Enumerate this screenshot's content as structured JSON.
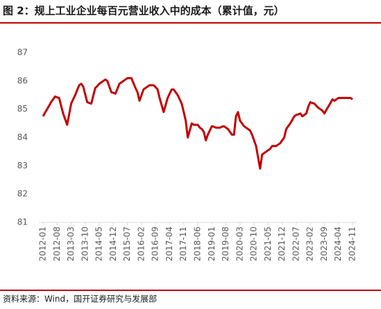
{
  "chart_data": {
    "type": "line",
    "title": "图 2：规上工业企业每百元营业收入中的成本（累计值，元）",
    "source": "资料来源：Wind，国开证券研究与发展部",
    "color": "#c00000",
    "categories": [
      "2012-01",
      null,
      null,
      null,
      null,
      null,
      null,
      "2012-08",
      null,
      null,
      null,
      null,
      null,
      null,
      "2013-03",
      null,
      null,
      null,
      null,
      null,
      null,
      "2013-10",
      null,
      null,
      null,
      null,
      null,
      null,
      "2014-05",
      null,
      null,
      null,
      null,
      null,
      null,
      "2014-12",
      null,
      null,
      null,
      null,
      null,
      null,
      "2015-07",
      null,
      null,
      null,
      null,
      null,
      null,
      "2016-02",
      null,
      null,
      null,
      null,
      null,
      null,
      "2016-09",
      null,
      null,
      null,
      null,
      null,
      null,
      "2017-04",
      null,
      null,
      null,
      null,
      null,
      null,
      "2017-11",
      null,
      null,
      null,
      null,
      null,
      null,
      "2018-06",
      null,
      null,
      null,
      null,
      null,
      null,
      "2019-01",
      null,
      null,
      null,
      null,
      null,
      null,
      "2019-08",
      null,
      null,
      null,
      null,
      null,
      null,
      "2020-03",
      null,
      null,
      null,
      null,
      null,
      null,
      "2020-10",
      null,
      null,
      null,
      null,
      null,
      null,
      "2021-05",
      null,
      null,
      null,
      null,
      null,
      null,
      "2021-12",
      null,
      null,
      null,
      null,
      null,
      null,
      "2022-07",
      null,
      null,
      null,
      null,
      null,
      null,
      "2023-02",
      null,
      null,
      null,
      null,
      null,
      null,
      "2023-09",
      null,
      null,
      null,
      null,
      null,
      null,
      "2024-04",
      null,
      null,
      null,
      null,
      null,
      null,
      "2024-11"
    ],
    "values": [
      84.75,
      84.88,
      85.0,
      85.12,
      85.25,
      85.35,
      85.45,
      85.42,
      85.4,
      85.12,
      84.85,
      84.65,
      84.45,
      84.82,
      85.2,
      85.35,
      85.5,
      85.68,
      85.85,
      85.9,
      85.8,
      85.52,
      85.25,
      85.22,
      85.2,
      85.48,
      85.75,
      85.82,
      85.9,
      85.95,
      86.0,
      86.05,
      86.0,
      85.8,
      85.6,
      85.58,
      85.55,
      85.72,
      85.9,
      85.95,
      86.0,
      86.05,
      86.1,
      86.1,
      86.1,
      85.92,
      85.75,
      85.6,
      85.3,
      85.5,
      85.7,
      85.75,
      85.8,
      85.85,
      85.85,
      85.85,
      85.78,
      85.7,
      85.4,
      85.15,
      84.9,
      85.15,
      85.4,
      85.55,
      85.7,
      85.7,
      85.6,
      85.5,
      85.35,
      85.2,
      84.9,
      84.6,
      84.0,
      84.25,
      84.5,
      84.45,
      84.45,
      84.45,
      84.35,
      84.3,
      84.2,
      83.9,
      84.1,
      84.25,
      84.4,
      84.38,
      84.35,
      84.35,
      84.35,
      84.38,
      84.4,
      84.35,
      84.3,
      84.2,
      84.1,
      84.1,
      84.75,
      84.9,
      84.6,
      84.5,
      84.4,
      84.35,
      84.3,
      84.25,
      84.1,
      83.9,
      83.7,
      83.3,
      82.9,
      83.4,
      83.45,
      83.5,
      83.55,
      83.6,
      83.7,
      83.7,
      83.7,
      83.75,
      83.8,
      83.9,
      84.0,
      84.3,
      84.4,
      84.5,
      84.62,
      84.75,
      84.8,
      84.82,
      84.85,
      84.75,
      84.8,
      84.85,
      85.1,
      85.25,
      85.22,
      85.2,
      85.12,
      85.05,
      85.0,
      84.95,
      84.85,
      84.98,
      85.1,
      85.22,
      85.35,
      85.3,
      85.35,
      85.4,
      85.4,
      85.4,
      85.4,
      85.4,
      85.4,
      85.4,
      85.35
    ],
    "ylim": [
      81,
      87
    ],
    "yticks": [
      81,
      82,
      83,
      84,
      85,
      86,
      87
    ]
  }
}
